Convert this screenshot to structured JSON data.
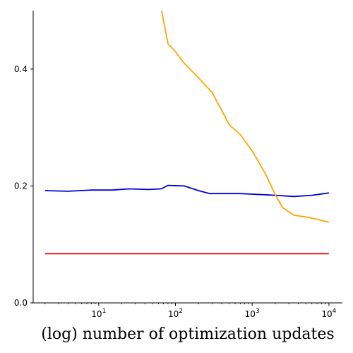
{
  "chart_data": {
    "type": "line",
    "xlabel": "(log) number of optimization updates",
    "ylabel": "",
    "title": "",
    "xscale": "log",
    "xlim": [
      1.4,
      15000
    ],
    "ylim": [
      0,
      0.5
    ],
    "grid": false,
    "legend": "none",
    "xticks": [
      {
        "value": 10,
        "base": "10",
        "exp": "1"
      },
      {
        "value": 100,
        "base": "10",
        "exp": "2"
      },
      {
        "value": 1000,
        "base": "10",
        "exp": "3"
      },
      {
        "value": 10000,
        "base": "10",
        "exp": "4"
      }
    ],
    "yticks": [
      {
        "value": 0,
        "label": "0.0"
      },
      {
        "value": 0.2,
        "label": "0.2"
      },
      {
        "value": 0.4,
        "label": "0.4"
      }
    ],
    "series": [
      {
        "color": "#0000dd",
        "points": [
          [
            2,
            0.192
          ],
          [
            4,
            0.191
          ],
          [
            8,
            0.193
          ],
          [
            15,
            0.193
          ],
          [
            25,
            0.195
          ],
          [
            45,
            0.194
          ],
          [
            65,
            0.195
          ],
          [
            80,
            0.201
          ],
          [
            130,
            0.2
          ],
          [
            200,
            0.192
          ],
          [
            280,
            0.187
          ],
          [
            400,
            0.187
          ],
          [
            700,
            0.187
          ],
          [
            1000,
            0.186
          ],
          [
            2000,
            0.184
          ],
          [
            3500,
            0.182
          ],
          [
            6000,
            0.184
          ],
          [
            10000,
            0.188
          ]
        ]
      },
      {
        "color": "#ffa500",
        "points": [
          [
            66,
            0.5
          ],
          [
            80,
            0.443
          ],
          [
            100,
            0.43
          ],
          [
            130,
            0.41
          ],
          [
            200,
            0.385
          ],
          [
            300,
            0.36
          ],
          [
            400,
            0.33
          ],
          [
            500,
            0.305
          ],
          [
            700,
            0.288
          ],
          [
            1000,
            0.26
          ],
          [
            1500,
            0.22
          ],
          [
            2000,
            0.185
          ],
          [
            2500,
            0.163
          ],
          [
            3500,
            0.15
          ],
          [
            5000,
            0.147
          ],
          [
            7000,
            0.143
          ],
          [
            10000,
            0.138
          ]
        ]
      },
      {
        "color": "#dd0000",
        "points": [
          [
            2,
            0.084
          ],
          [
            10000,
            0.084
          ]
        ]
      }
    ]
  }
}
